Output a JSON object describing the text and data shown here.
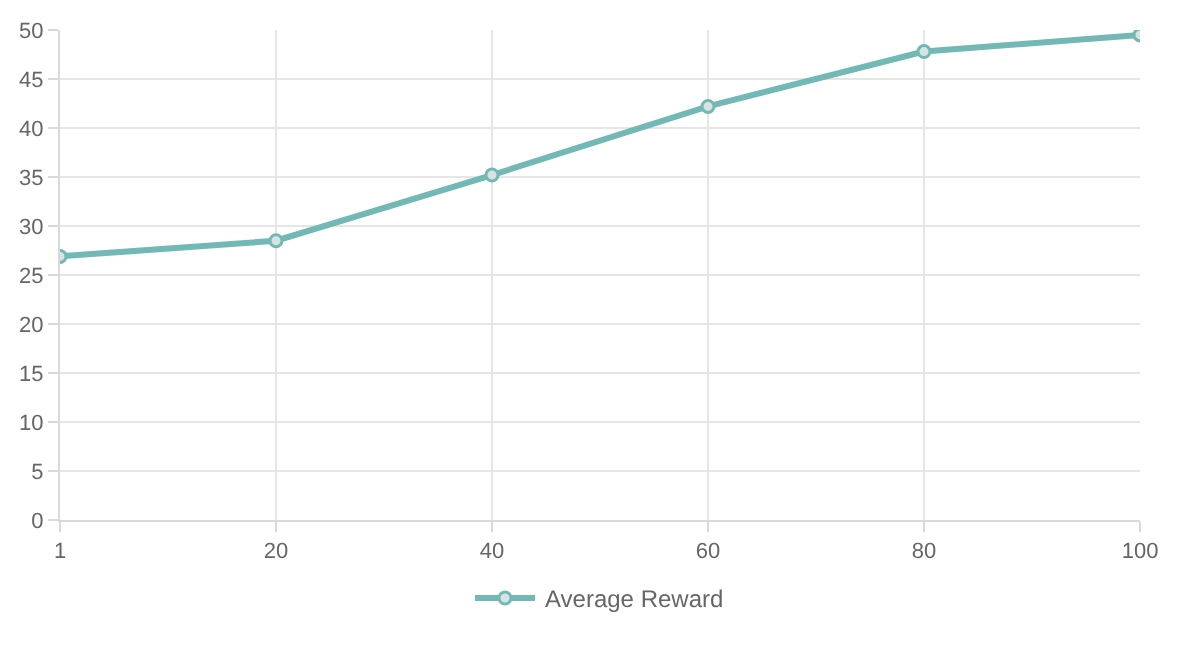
{
  "chart_data": {
    "type": "line",
    "categories": [
      "1",
      "20",
      "40",
      "60",
      "80",
      "100"
    ],
    "series": [
      {
        "name": "Average Reward",
        "color": "#72b8b5",
        "values": [
          26.9,
          28.5,
          35.2,
          42.2,
          47.8,
          49.5
        ]
      }
    ],
    "ylim": [
      0,
      50
    ],
    "yticks": [
      0,
      5,
      10,
      15,
      20,
      25,
      30,
      35,
      40,
      45,
      50
    ],
    "grid": true,
    "legend": "bottom",
    "marker": "circle",
    "line_style": "solid"
  }
}
